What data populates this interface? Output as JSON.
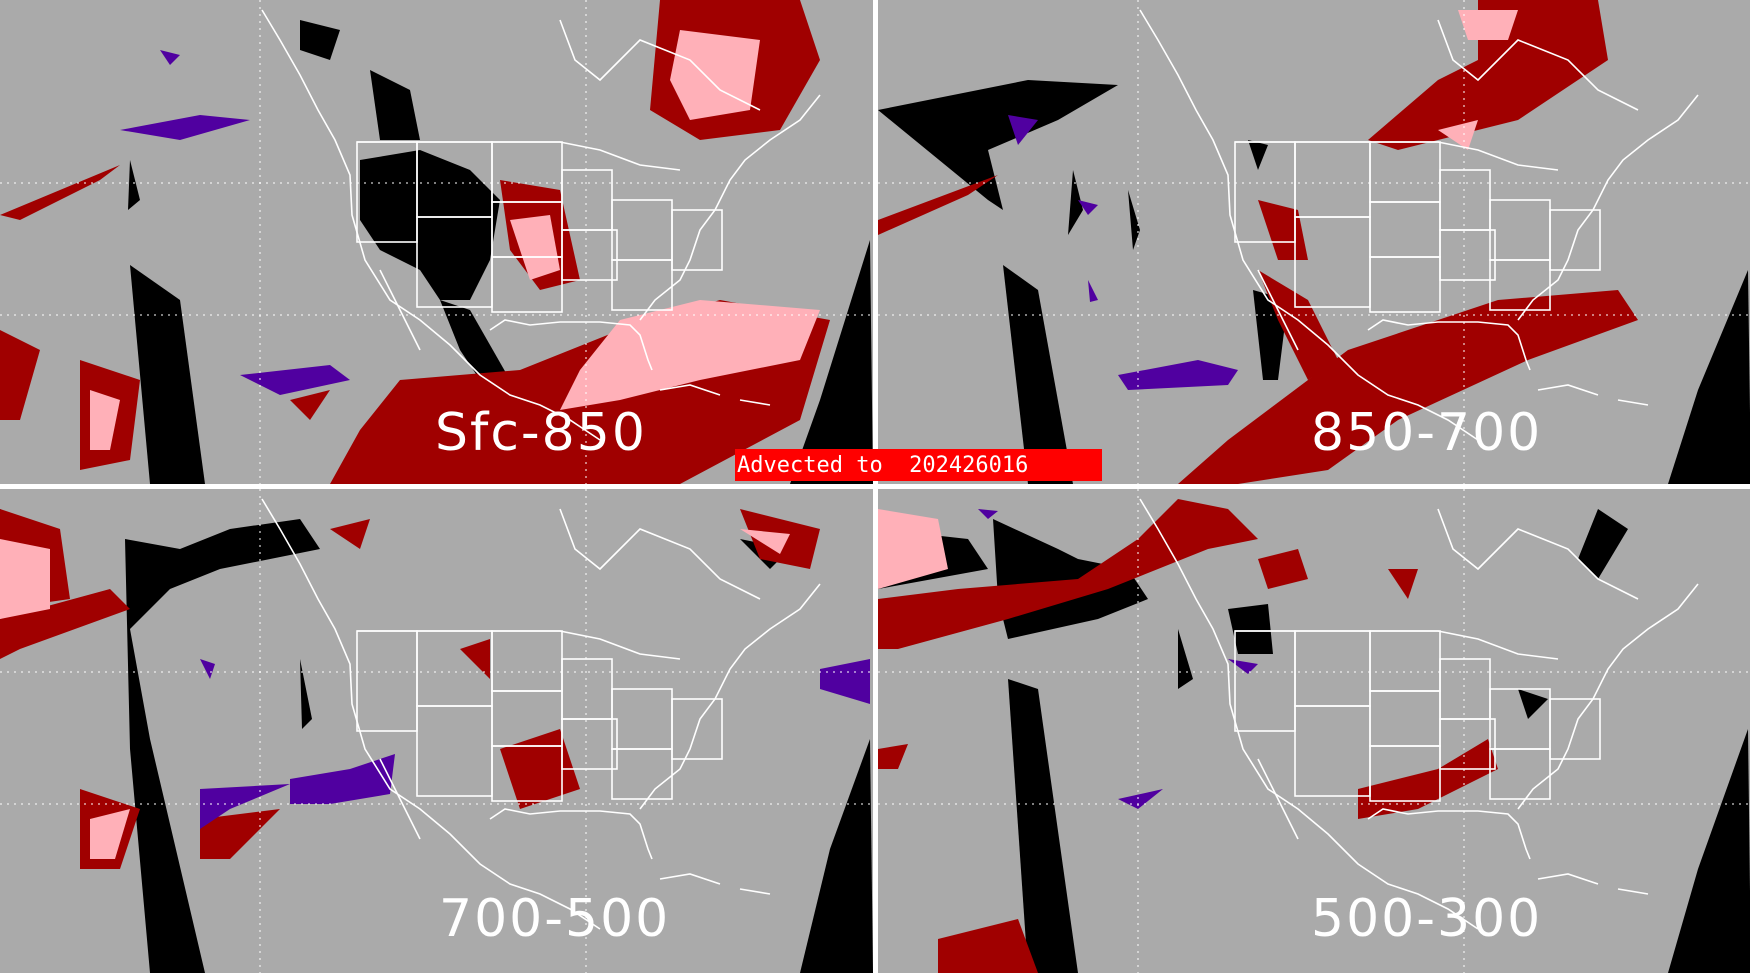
{
  "banner": {
    "text": "Advected to  202426016"
  },
  "panels": [
    {
      "label": "Sfc-850"
    },
    {
      "label": "850-700"
    },
    {
      "label": "700-500"
    },
    {
      "label": "500-300"
    }
  ],
  "colors": {
    "background": "#aaaaaa",
    "no_data": "#000000",
    "category_dark_red": "#a00000",
    "category_pink": "#ffb0b8",
    "category_purple": "#5000a0",
    "map_lines": "#ffffff",
    "banner": "#ff0000"
  }
}
